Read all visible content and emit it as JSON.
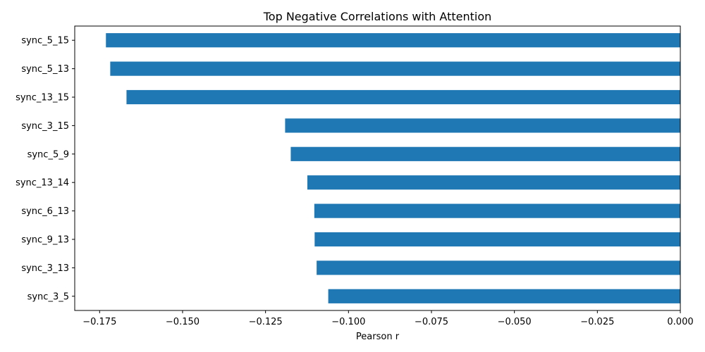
{
  "chart_data": {
    "type": "bar",
    "orientation": "horizontal",
    "title": "Top Negative Correlations with Attention",
    "xlabel": "Pearson r",
    "ylabel": "",
    "categories": [
      "sync_5_15",
      "sync_5_13",
      "sync_13_15",
      "sync_3_15",
      "sync_5_9",
      "sync_13_14",
      "sync_6_13",
      "sync_9_13",
      "sync_3_13",
      "sync_3_5"
    ],
    "values": [
      -0.1731,
      -0.1718,
      -0.1669,
      -0.1191,
      -0.1174,
      -0.1124,
      -0.1103,
      -0.1102,
      -0.1096,
      -0.1061
    ],
    "xlim": [
      -0.1825,
      0.0
    ],
    "xticks": [
      -0.175,
      -0.15,
      -0.125,
      -0.1,
      -0.075,
      -0.05,
      -0.025,
      0.0
    ],
    "xtick_labels": [
      "−0.175",
      "−0.150",
      "−0.125",
      "−0.100",
      "−0.075",
      "−0.050",
      "−0.025",
      "0.000"
    ],
    "bar_color": "#1f77b4",
    "grid": false,
    "legend": "none"
  }
}
